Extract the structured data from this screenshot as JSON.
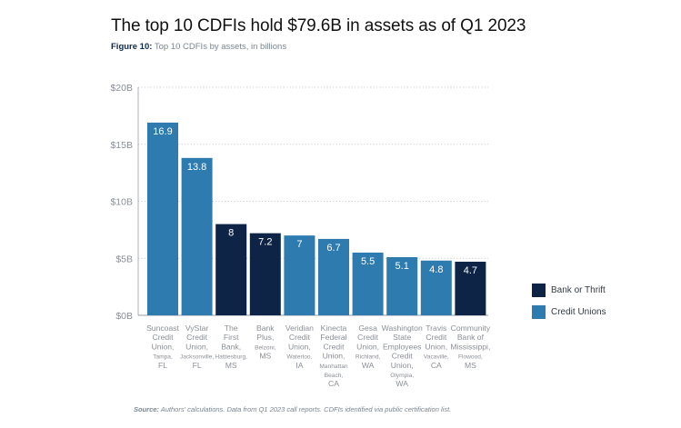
{
  "title": "The top 10 CDFIs hold $79.6B in assets as of Q1 2023",
  "subtitle": {
    "figure_label": "Figure 10:",
    "text": "Top 10 CDFIs by assets, in billions"
  },
  "source": {
    "label": "Source:",
    "text": "Authors' calculations. Data from Q1 2023 call reports. CDFIs identified via public certification list."
  },
  "colors": {
    "bank": "#0d2446",
    "credit_union": "#2e7bb0",
    "grid": "#bfbfbf",
    "axis_text": "#8a8f96"
  },
  "chart_data": {
    "type": "bar",
    "title": "The top 10 CDFIs hold $79.6B in assets as of Q1 2023",
    "subtitle": "Top 10 CDFIs by assets, in billions",
    "xlabel": "",
    "ylabel": "",
    "ylim": [
      0,
      20
    ],
    "yticks": [
      0,
      5,
      10,
      15,
      20
    ],
    "ytick_labels": [
      "$0B",
      "$5B",
      "$10B",
      "$15B",
      "$20B"
    ],
    "grid": true,
    "legend_position": "right",
    "legend": [
      {
        "key": "bank",
        "label": "Bank or Thrift"
      },
      {
        "key": "credit_union",
        "label": "Credit Unions"
      }
    ],
    "bars": [
      {
        "name": [
          "Suncoast",
          "Credit",
          "Union,"
        ],
        "city": "Tampa,",
        "state": "FL",
        "value": 16.9,
        "label": "16.9",
        "type": "credit_union"
      },
      {
        "name": [
          "VyStar",
          "Credit",
          "Union,"
        ],
        "city": "Jacksonville,",
        "state": "FL",
        "value": 13.8,
        "label": "13.8",
        "type": "credit_union"
      },
      {
        "name": [
          "The",
          "First",
          "Bank,"
        ],
        "city": "Hattiesburg,",
        "state": "MS",
        "value": 8,
        "label": "8",
        "type": "bank"
      },
      {
        "name": [
          "Bank",
          "Plus,"
        ],
        "city": "Belzoni,",
        "state": "MS",
        "value": 7.2,
        "label": "7.2",
        "type": "bank"
      },
      {
        "name": [
          "Veridian",
          "Credit",
          "Union,"
        ],
        "city": "Waterloo,",
        "state": "IA",
        "value": 7,
        "label": "7",
        "type": "credit_union"
      },
      {
        "name": [
          "Kinecta",
          "Federal",
          "Credit",
          "Union,"
        ],
        "city": "Manhattan Beach,",
        "state": "CA",
        "value": 6.7,
        "label": "6.7",
        "type": "credit_union"
      },
      {
        "name": [
          "Gesa",
          "Credit",
          "Union,"
        ],
        "city": "Richland,",
        "state": "WA",
        "value": 5.5,
        "label": "5.5",
        "type": "credit_union"
      },
      {
        "name": [
          "Washington",
          "State",
          "Employees",
          "Credit",
          "Union,"
        ],
        "city": "Olympia,",
        "state": "WA",
        "value": 5.1,
        "label": "5.1",
        "type": "credit_union"
      },
      {
        "name": [
          "Travis",
          "Credit",
          "Union,"
        ],
        "city": "Vacaville,",
        "state": "CA",
        "value": 4.8,
        "label": "4.8",
        "type": "credit_union"
      },
      {
        "name": [
          "Community",
          "Bank of",
          "Mississippi,"
        ],
        "city": "Flowood,",
        "state": "MS",
        "value": 4.7,
        "label": "4.7",
        "type": "bank"
      }
    ]
  }
}
